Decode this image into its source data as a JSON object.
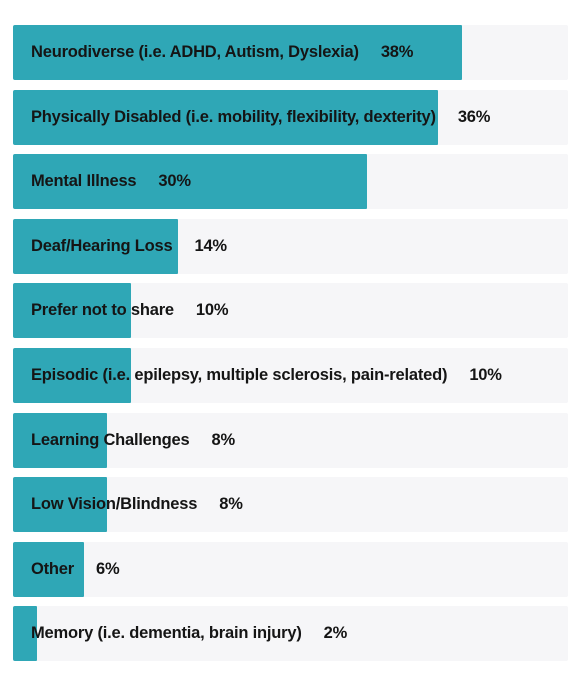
{
  "chart_data": {
    "type": "bar",
    "orientation": "horizontal",
    "bar_color": "#2fa7b6",
    "track_color": "#f6f6f8",
    "xlim": [
      0,
      47
    ],
    "categories": [
      "Neurodiverse (i.e. ADHD, Autism, Dyslexia)",
      "Physically Disabled (i.e. mobility, flexibility, dexterity)",
      "Mental Illness",
      "Deaf/Hearing Loss",
      "Prefer not to share",
      "Episodic (i.e. epilepsy, multiple sclerosis, pain-related)",
      "Learning Challenges",
      "Low Vision/Blindness",
      "Other",
      "Memory (i.e. dementia, brain injury)"
    ],
    "values": [
      38,
      36,
      30,
      14,
      10,
      10,
      8,
      8,
      6,
      2
    ],
    "value_labels": [
      "38%",
      "36%",
      "30%",
      "14%",
      "10%",
      "10%",
      "8%",
      "8%",
      "6%",
      "2%"
    ]
  }
}
